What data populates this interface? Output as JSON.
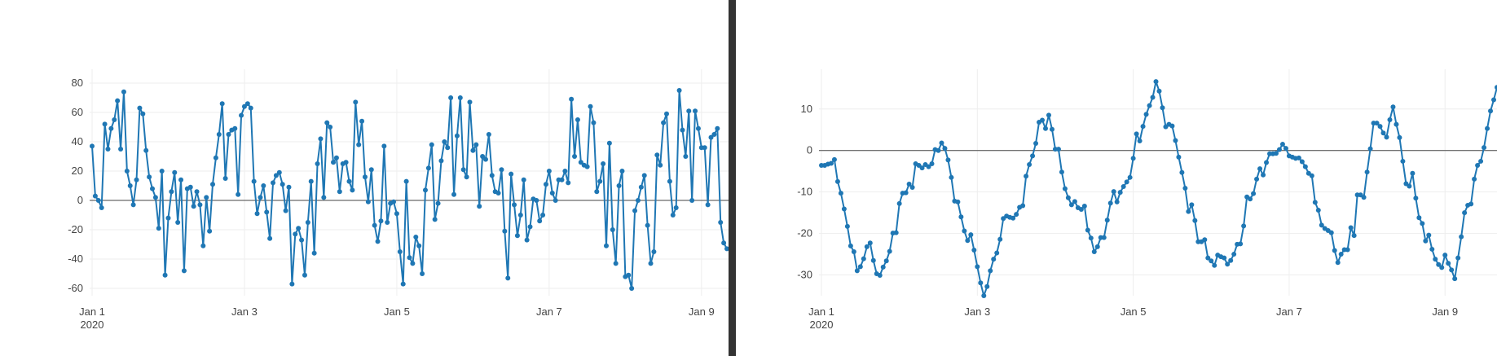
{
  "layout": {
    "divider_color": "#333333",
    "series_color": "#1f77b4",
    "grid_color": "#eeeeee",
    "zero_line_color": "#444444"
  },
  "chart_data": [
    {
      "type": "line",
      "mode": "lines+markers",
      "title": "",
      "xlabel": "",
      "ylabel": "",
      "x_start": "2020-01-01 00:00",
      "x_step_hours": 1,
      "xlim": [
        "2020-01-01 00:00",
        "2020-01-09 21:00"
      ],
      "ylim": [
        -65,
        85
      ],
      "x_ticks": [
        {
          "date": "2020-01-01",
          "label": "Jan 1",
          "sub": "2020"
        },
        {
          "date": "2020-01-03",
          "label": "Jan 3",
          "sub": ""
        },
        {
          "date": "2020-01-05",
          "label": "Jan 5",
          "sub": ""
        },
        {
          "date": "2020-01-07",
          "label": "Jan 7",
          "sub": ""
        },
        {
          "date": "2020-01-09",
          "label": "Jan 9",
          "sub": ""
        }
      ],
      "y_ticks": [
        80,
        60,
        40,
        20,
        0,
        -20,
        -40,
        -60
      ],
      "grid": true,
      "zero_line": true,
      "series": [
        {
          "color": "#1f77b4",
          "values": [
            37,
            3,
            0,
            -5,
            52,
            35,
            49,
            55,
            68,
            35,
            74,
            20,
            10,
            -3,
            14,
            63,
            59,
            34,
            16,
            8,
            2,
            -19,
            20,
            -51,
            -12,
            6,
            19,
            -15,
            14,
            -48,
            8,
            9,
            -4,
            6,
            -3,
            -31,
            2,
            -21,
            11,
            29,
            45,
            66,
            15,
            45,
            48,
            49,
            4,
            58,
            64,
            66,
            63,
            13,
            -9,
            2,
            10,
            -8,
            -26,
            12,
            17,
            19,
            11,
            -7,
            9,
            -57,
            -23,
            -19,
            -27,
            -51,
            -15,
            13,
            -36,
            25,
            42,
            2,
            53,
            50,
            26,
            29,
            6,
            25,
            26,
            13,
            7,
            67,
            38,
            54,
            16,
            -1,
            21,
            -17,
            -28,
            -14,
            37,
            -15,
            -2,
            -1,
            -9,
            -35,
            -57,
            13,
            -39,
            -43,
            -25,
            -31,
            -50,
            7,
            22,
            38,
            -13,
            -2,
            27,
            40,
            36,
            70,
            4,
            44,
            70,
            21,
            16,
            67,
            34,
            38,
            -4,
            30,
            28,
            45,
            17,
            6,
            5,
            21,
            -21,
            -53,
            18,
            -3,
            -24,
            -10,
            14,
            -27,
            -18,
            1,
            0,
            -14,
            -10,
            11,
            20,
            5,
            0,
            14,
            14,
            20,
            12,
            69,
            30,
            55,
            26,
            24,
            23,
            64,
            53,
            6,
            13,
            25,
            -31,
            39,
            -20,
            -43,
            10,
            20,
            -52,
            -51,
            -60,
            -7,
            0,
            9,
            17,
            -17,
            -43,
            -35,
            31,
            24,
            53,
            59,
            13,
            -10,
            -5,
            75,
            48,
            30,
            61,
            0,
            61,
            49,
            36,
            36,
            -3,
            43,
            45,
            49,
            -15,
            -29,
            -33
          ]
        }
      ]
    },
    {
      "type": "line",
      "mode": "lines+markers",
      "title": "",
      "xlabel": "",
      "ylabel": "",
      "x_start": "2020-01-01 00:00",
      "x_step_hours": 1,
      "xlim": [
        "2020-01-01 00:00",
        "2020-01-09 21:00"
      ],
      "ylim": [
        -35,
        18
      ],
      "x_ticks": [
        {
          "date": "2020-01-01",
          "label": "Jan 1",
          "sub": "2020"
        },
        {
          "date": "2020-01-03",
          "label": "Jan 3",
          "sub": ""
        },
        {
          "date": "2020-01-05",
          "label": "Jan 5",
          "sub": ""
        },
        {
          "date": "2020-01-07",
          "label": "Jan 7",
          "sub": ""
        },
        {
          "date": "2020-01-09",
          "label": "Jan 9",
          "sub": ""
        }
      ],
      "y_ticks": [
        10,
        0,
        -10,
        -20,
        -30
      ],
      "grid": true,
      "zero_line": true,
      "series": [
        {
          "color": "#1f77b4",
          "values": [
            -3.6,
            -3.6,
            -3.3,
            -3.1,
            -2.2,
            -7.5,
            -10.3,
            -14.1,
            -18.3,
            -23.0,
            -24.4,
            -29.0,
            -28.0,
            -26.1,
            -23.2,
            -22.3,
            -26.5,
            -29.7,
            -30.1,
            -28.1,
            -26.6,
            -24.3,
            -19.9,
            -19.8,
            -12.8,
            -10.3,
            -10.2,
            -8.1,
            -8.9,
            -3.2,
            -3.6,
            -4.2,
            -3.4,
            -3.9,
            -3.2,
            0.2,
            0.0,
            1.8,
            0.5,
            -2.3,
            -6.5,
            -12.2,
            -12.4,
            -16.0,
            -19.4,
            -21.7,
            -20.3,
            -24.0,
            -28.0,
            -31.9,
            -35.0,
            -32.8,
            -29.0,
            -26.2,
            -24.7,
            -21.4,
            -16.4,
            -15.8,
            -16.1,
            -16.3,
            -15.4,
            -13.7,
            -13.3,
            -6.2,
            -3.4,
            -1.3,
            1.7,
            6.8,
            7.3,
            5.3,
            8.5,
            5.1,
            0.3,
            0.3,
            -5.2,
            -9.2,
            -11.4,
            -13.1,
            -12.3,
            -13.8,
            -14.2,
            -13.4,
            -19.2,
            -21.1,
            -24.4,
            -23.2,
            -21.0,
            -21.0,
            -16.8,
            -12.7,
            -9.9,
            -12.4,
            -10.1,
            -8.7,
            -7.6,
            -6.5,
            -1.9,
            4.0,
            2.3,
            5.8,
            8.7,
            10.8,
            12.8,
            16.6,
            14.3,
            10.3,
            5.7,
            6.3,
            5.9,
            2.4,
            -1.6,
            -5.3,
            -9.1,
            -14.7,
            -13.1,
            -16.9,
            -22.0,
            -22.0,
            -21.5,
            -25.9,
            -26.6,
            -27.7,
            -25.2,
            -25.6,
            -25.9,
            -27.4,
            -26.5,
            -25.0,
            -22.6,
            -22.5,
            -18.2,
            -11.2,
            -11.7,
            -10.4,
            -6.9,
            -4.4,
            -5.9,
            -2.9,
            -0.8,
            -0.8,
            -0.7,
            0.2,
            1.5,
            0.5,
            -1.3,
            -1.6,
            -1.9,
            -1.8,
            -2.7,
            -3.9,
            -5.5,
            -6.1,
            -12.5,
            -14.4,
            -18.0,
            -18.8,
            -19.3,
            -19.8,
            -24.1,
            -27.0,
            -25.0,
            -23.9,
            -23.9,
            -18.6,
            -20.5,
            -10.7,
            -10.7,
            -11.3,
            -5.2,
            0.4,
            6.6,
            6.6,
            5.8,
            4.2,
            3.2,
            7.4,
            10.5,
            6.3,
            3.1,
            -2.6,
            -8.0,
            -8.6,
            -5.5,
            -11.5,
            -16.2,
            -17.6,
            -21.8,
            -20.4,
            -23.8,
            -26.2,
            -27.5,
            -28.2,
            -25.2,
            -27.2,
            -28.8,
            -30.9,
            -25.9,
            -20.8,
            -15.0,
            -13.2,
            -12.9,
            -6.9,
            -3.6,
            -2.6,
            0.7,
            5.3,
            9.5,
            12.2,
            15.2
          ]
        }
      ]
    }
  ]
}
